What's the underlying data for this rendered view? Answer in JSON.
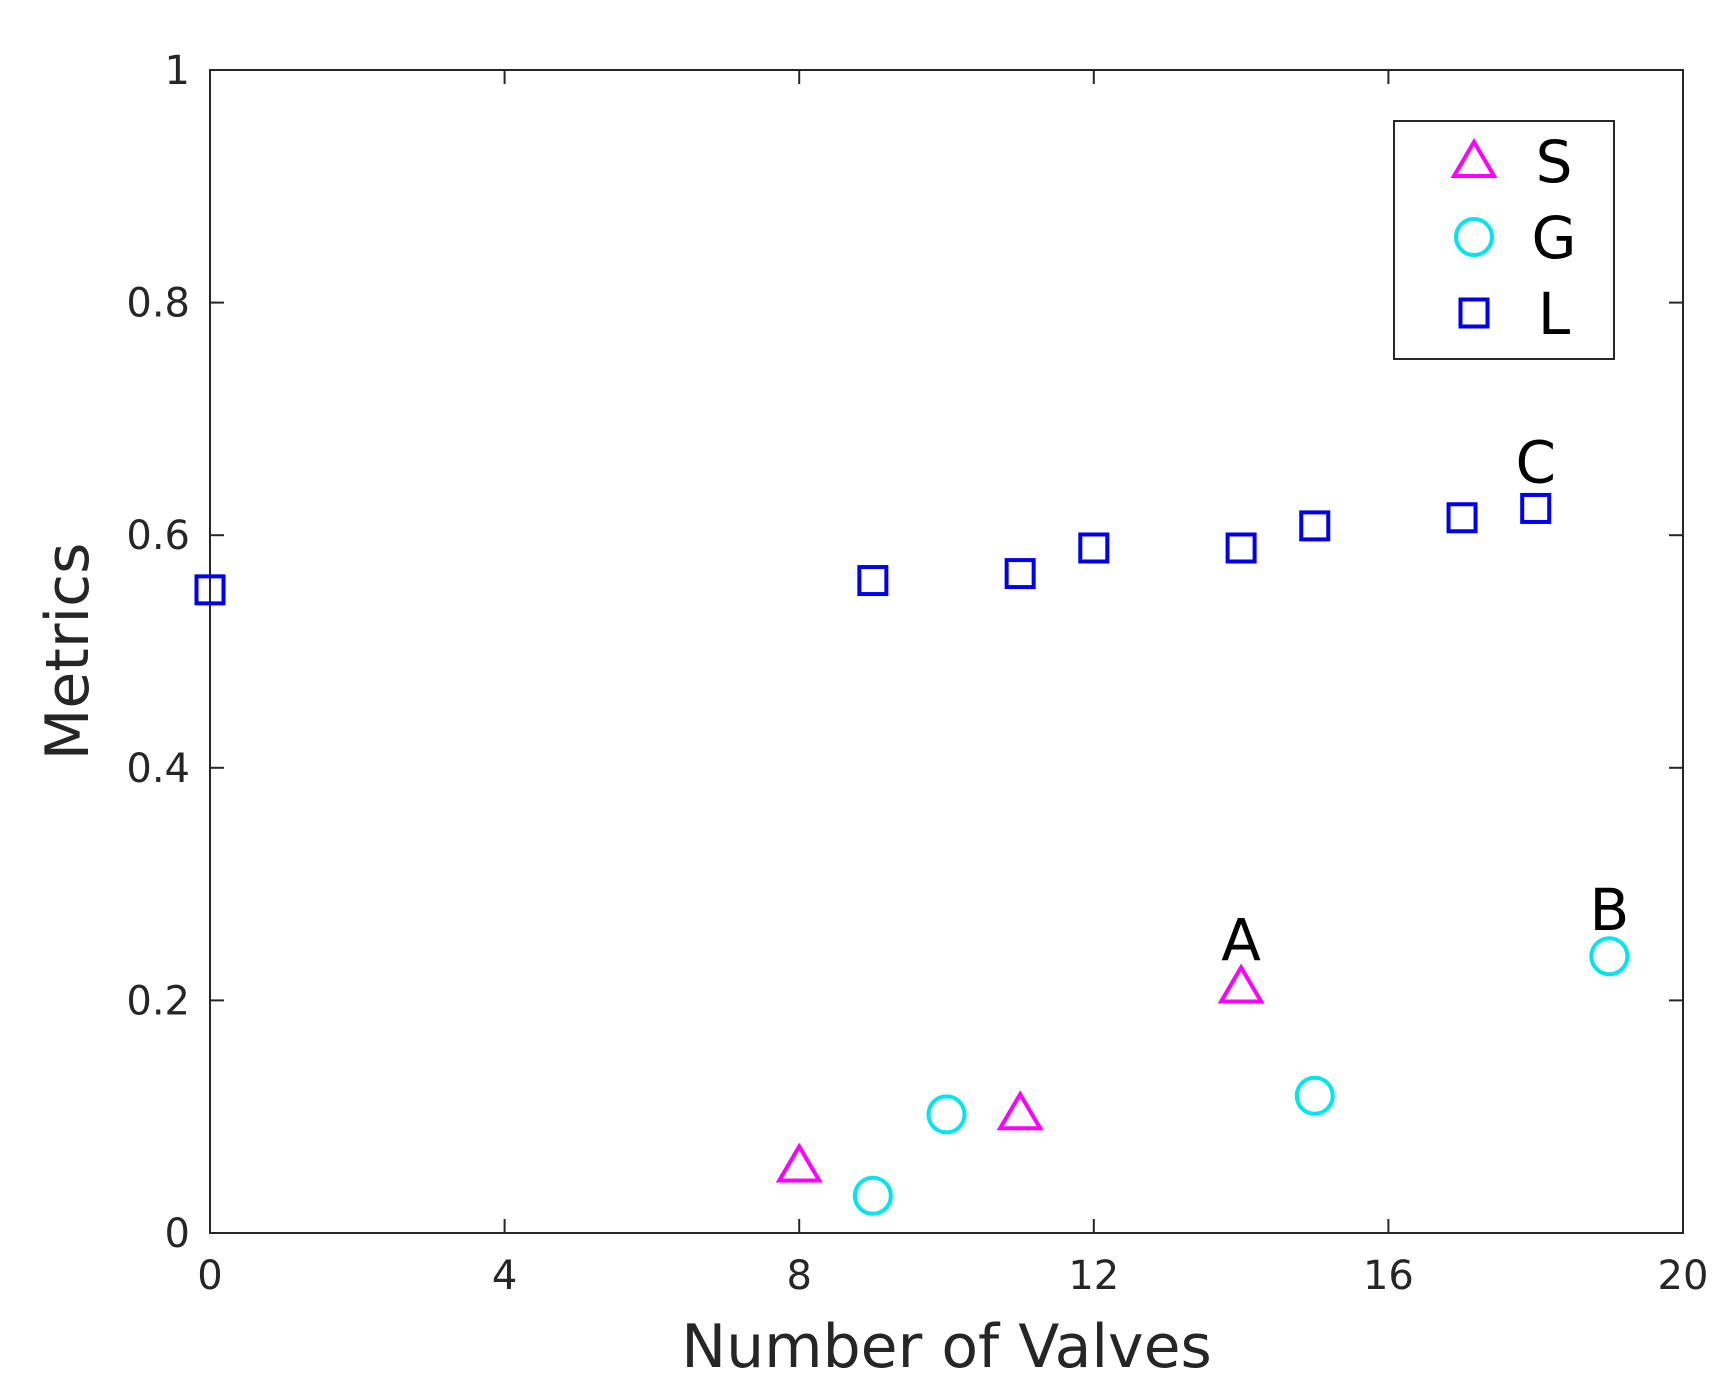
{
  "chart_data": {
    "type": "scatter",
    "title": "",
    "xlabel": "Number of Valves",
    "ylabel": "Metrics",
    "xlim": [
      0,
      20
    ],
    "ylim": [
      0,
      1
    ],
    "xticks": [
      0,
      4,
      8,
      12,
      16,
      20
    ],
    "xtick_labels": [
      "0",
      "4",
      "8",
      "12",
      "16",
      "20"
    ],
    "yticks": [
      0,
      0.2,
      0.4,
      0.6,
      0.8,
      1
    ],
    "ytick_labels": [
      "0",
      "0.2",
      "0.4",
      "0.6",
      "0.8",
      "1"
    ],
    "grid": false,
    "legend_position": "top-right",
    "series": [
      {
        "name": "S",
        "marker": "triangle",
        "color": "#ff00ff",
        "x": [
          8,
          11,
          14
        ],
        "y": [
          0.058,
          0.103,
          0.212
        ]
      },
      {
        "name": "G",
        "marker": "circle",
        "color": "#00e5ee",
        "x": [
          9,
          10,
          15,
          19
        ],
        "y": [
          0.032,
          0.102,
          0.118,
          0.238
        ]
      },
      {
        "name": "L",
        "marker": "square",
        "color": "#0000ee",
        "x": [
          0,
          9,
          11,
          12,
          14,
          15,
          17,
          18
        ],
        "y": [
          0.553,
          0.561,
          0.567,
          0.589,
          0.589,
          0.608,
          0.615,
          0.623
        ]
      }
    ],
    "annotations": [
      {
        "text": "A",
        "x": 14,
        "y": 0.212
      },
      {
        "text": "B",
        "x": 19,
        "y": 0.238
      },
      {
        "text": "C",
        "x": 18,
        "y": 0.623
      }
    ]
  }
}
